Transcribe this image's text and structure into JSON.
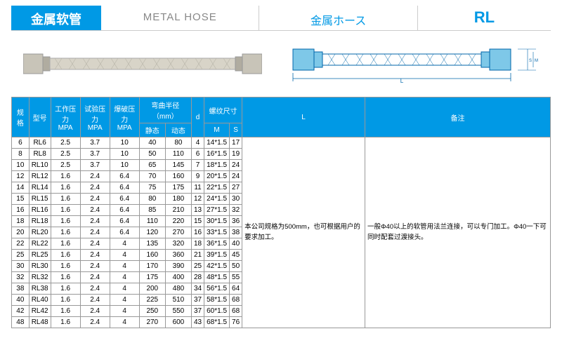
{
  "header": {
    "cn": "金属软管",
    "en": "METAL HOSE",
    "jp": "金属ホース",
    "code": "RL"
  },
  "table": {
    "columns": {
      "spec": "规格",
      "model": "型号",
      "work_pressure": "工作压力\nMPA",
      "test_pressure": "试验压力\nMPA",
      "burst_pressure": "爆破压力\nMPA",
      "bend_radius": "弯曲半径（mm）",
      "bend_static": "静态",
      "bend_dynamic": "动态",
      "d": "d",
      "thread": "螺纹尺寸",
      "thread_m": "M",
      "thread_s": "S",
      "L": "L",
      "remark": "备注"
    },
    "rows": [
      {
        "spec": "6",
        "model": "RL6",
        "wp": "2.5",
        "tp": "3.7",
        "bp": "10",
        "bs": "40",
        "bd": "80",
        "d": "4",
        "m": "14*1.5",
        "s": "17"
      },
      {
        "spec": "8",
        "model": "RL8",
        "wp": "2.5",
        "tp": "3.7",
        "bp": "10",
        "bs": "50",
        "bd": "110",
        "d": "6",
        "m": "16*1.5",
        "s": "19"
      },
      {
        "spec": "10",
        "model": "RL10",
        "wp": "2.5",
        "tp": "3.7",
        "bp": "10",
        "bs": "65",
        "bd": "145",
        "d": "7",
        "m": "18*1.5",
        "s": "24"
      },
      {
        "spec": "12",
        "model": "RL12",
        "wp": "1.6",
        "tp": "2.4",
        "bp": "6.4",
        "bs": "70",
        "bd": "160",
        "d": "9",
        "m": "20*1.5",
        "s": "24"
      },
      {
        "spec": "14",
        "model": "RL14",
        "wp": "1.6",
        "tp": "2.4",
        "bp": "6.4",
        "bs": "75",
        "bd": "175",
        "d": "11",
        "m": "22*1.5",
        "s": "27"
      },
      {
        "spec": "15",
        "model": "RL15",
        "wp": "1.6",
        "tp": "2.4",
        "bp": "6.4",
        "bs": "80",
        "bd": "180",
        "d": "12",
        "m": "24*1.5",
        "s": "30"
      },
      {
        "spec": "16",
        "model": "RL16",
        "wp": "1.6",
        "tp": "2.4",
        "bp": "6.4",
        "bs": "85",
        "bd": "210",
        "d": "13",
        "m": "27*1.5",
        "s": "32"
      },
      {
        "spec": "18",
        "model": "RL18",
        "wp": "1.6",
        "tp": "2.4",
        "bp": "6.4",
        "bs": "110",
        "bd": "220",
        "d": "15",
        "m": "30*1.5",
        "s": "36"
      },
      {
        "spec": "20",
        "model": "RL20",
        "wp": "1.6",
        "tp": "2.4",
        "bp": "6.4",
        "bs": "120",
        "bd": "270",
        "d": "16",
        "m": "33*1.5",
        "s": "38"
      },
      {
        "spec": "22",
        "model": "RL22",
        "wp": "1.6",
        "tp": "2.4",
        "bp": "4",
        "bs": "135",
        "bd": "320",
        "d": "18",
        "m": "36*1.5",
        "s": "40"
      },
      {
        "spec": "25",
        "model": "RL25",
        "wp": "1.6",
        "tp": "2.4",
        "bp": "4",
        "bs": "160",
        "bd": "360",
        "d": "21",
        "m": "39*1.5",
        "s": "45"
      },
      {
        "spec": "30",
        "model": "RL30",
        "wp": "1.6",
        "tp": "2.4",
        "bp": "4",
        "bs": "170",
        "bd": "390",
        "d": "25",
        "m": "42*1.5",
        "s": "50"
      },
      {
        "spec": "32",
        "model": "RL32",
        "wp": "1.6",
        "tp": "2.4",
        "bp": "4",
        "bs": "175",
        "bd": "400",
        "d": "28",
        "m": "48*1.5",
        "s": "55"
      },
      {
        "spec": "38",
        "model": "RL38",
        "wp": "1.6",
        "tp": "2.4",
        "bp": "4",
        "bs": "200",
        "bd": "480",
        "d": "34",
        "m": "56*1.5",
        "s": "64"
      },
      {
        "spec": "40",
        "model": "RL40",
        "wp": "1.6",
        "tp": "2.4",
        "bp": "4",
        "bs": "225",
        "bd": "510",
        "d": "37",
        "m": "58*1.5",
        "s": "68"
      },
      {
        "spec": "42",
        "model": "RL42",
        "wp": "1.6",
        "tp": "2.4",
        "bp": "4",
        "bs": "250",
        "bd": "550",
        "d": "37",
        "m": "60*1.5",
        "s": "68"
      },
      {
        "spec": "48",
        "model": "RL48",
        "wp": "1.6",
        "tp": "2.4",
        "bp": "4",
        "bs": "270",
        "bd": "600",
        "d": "43",
        "m": "68*1.5",
        "s": "76"
      }
    ],
    "note_L": "本公司规格为500mm，也可根据用户的要求加工。",
    "note_remark": "一般Φ40以上的软管用法兰连接，可以专门加工。Φ40一下可同时配套过渡接头。"
  },
  "colors": {
    "primary": "#0099e5",
    "border": "#999999",
    "text_muted": "#888888"
  }
}
